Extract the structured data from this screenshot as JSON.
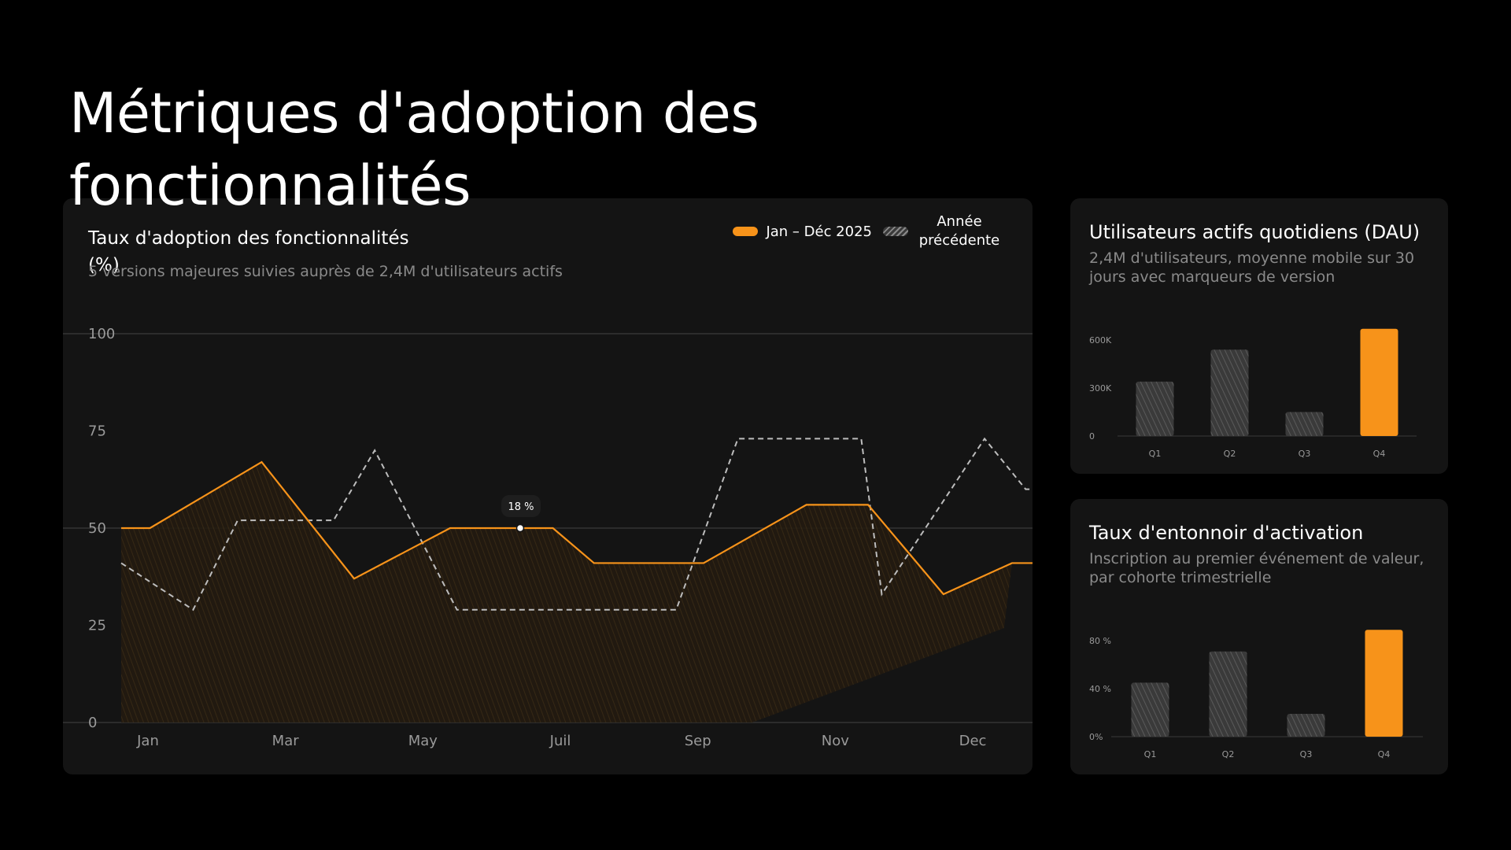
{
  "page": {
    "title": "Métriques d'adoption des fonctionnalités"
  },
  "main_chart": {
    "title": "Taux d'adoption des fonctionnalités (%)",
    "subtitle": "5 versions majeures suivies auprès de 2,4M d'utilisateurs actifs",
    "legend_current": "Jan – Déc 2025",
    "legend_previous": "Année précédente",
    "tooltip": "18 %",
    "colors": {
      "current": "#f7931a",
      "previous": "#bdbdbd",
      "background": "#141414"
    }
  },
  "dau_chart": {
    "title": "Utilisateurs actifs quotidiens (DAU)",
    "subtitle": "2,4M d'utilisateurs, moyenne mobile sur 30 jours avec marqueurs de version"
  },
  "funnel_chart": {
    "title": "Taux d'entonnoir d'activation",
    "subtitle": "Inscription au premier événement de valeur, par cohorte trimestrielle"
  },
  "chart_data": [
    {
      "type": "line",
      "x_ticks": [
        "Jan",
        "Mar",
        "May",
        "Juil",
        "Sep",
        "Nov",
        "Dec"
      ],
      "x": [
        1,
        1.42,
        2.2,
        3.05,
        4.05,
        4.7,
        5.9,
        6.2,
        7.1,
        8.9,
        9.5,
        11.2,
        11.5,
        12.2,
        13
      ],
      "y_ticks": [
        "0",
        "25",
        "50",
        "75",
        "100"
      ],
      "ylim": [
        0,
        100
      ],
      "xlim": [
        0.15,
        14.3
      ],
      "grid": true,
      "legend": "top-right",
      "series": [
        {
          "name": "Jan – Déc 2025",
          "x": [
            1,
            1.42,
            3.05,
            4.4,
            5.8,
            7.3,
            7.9,
            9.5,
            11.0,
            11.9,
            13.0,
            14.0,
            14.85
          ],
          "values": [
            50,
            50,
            67,
            37,
            50,
            50,
            41,
            41,
            56,
            56,
            33,
            41,
            41
          ]
        },
        {
          "name": "Année précédente",
          "x": [
            1,
            2.05,
            2.7,
            3.6,
            4.1,
            4.7,
            5.9,
            8.5,
            9.1,
            10.0,
            10.2,
            11.8,
            12.1,
            13.6,
            14.2,
            14.85
          ],
          "values": [
            41,
            29,
            52,
            52,
            52,
            70,
            29,
            29,
            29,
            73,
            73,
            73,
            33,
            73,
            60,
            60
          ]
        }
      ]
    },
    {
      "type": "bar",
      "categories": [
        "Q1",
        "Q2",
        "Q3",
        "Q4"
      ],
      "values": [
        340000,
        540000,
        150000,
        670000
      ],
      "y_ticks": [
        "0",
        "300K",
        "600K"
      ],
      "ylim": [
        0,
        600000
      ],
      "highlight": "Q4"
    },
    {
      "type": "bar",
      "categories": [
        "Q1",
        "Q2",
        "Q3",
        "Q4"
      ],
      "values": [
        45,
        71,
        19,
        89
      ],
      "y_ticks": [
        "0%",
        "40 %",
        "80 %"
      ],
      "ylim": [
        0,
        80
      ],
      "highlight": "Q4"
    }
  ]
}
